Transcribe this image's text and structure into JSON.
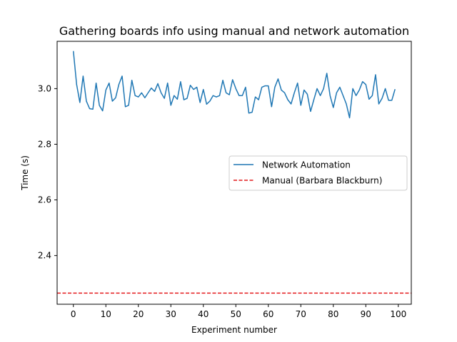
{
  "chart_data": {
    "type": "line",
    "title": "Gathering boards info using manual and network automation",
    "xlabel": "Experiment number",
    "ylabel": "Time (s)",
    "xlim": [
      -5,
      104
    ],
    "ylim": [
      2.225,
      3.17
    ],
    "xticks": [
      0,
      10,
      20,
      30,
      40,
      50,
      60,
      70,
      80,
      90,
      100
    ],
    "yticks": [
      2.4,
      2.6,
      2.8,
      3.0
    ],
    "ytick_labels": [
      "2.4",
      "2.6",
      "2.8",
      "3.0"
    ],
    "grid": false,
    "legend_position": "center-right",
    "series": [
      {
        "name": "Network Automation",
        "style": "solid",
        "color": "#1f77b4",
        "x": [
          0,
          1,
          2,
          3,
          4,
          5,
          6,
          7,
          8,
          9,
          10,
          11,
          12,
          13,
          14,
          15,
          16,
          17,
          18,
          19,
          20,
          21,
          22,
          23,
          24,
          25,
          26,
          27,
          28,
          29,
          30,
          31,
          32,
          33,
          34,
          35,
          36,
          37,
          38,
          39,
          40,
          41,
          42,
          43,
          44,
          45,
          46,
          47,
          48,
          49,
          50,
          51,
          52,
          53,
          54,
          55,
          56,
          57,
          58,
          59,
          60,
          61,
          62,
          63,
          64,
          65,
          66,
          67,
          68,
          69,
          70,
          71,
          72,
          73,
          74,
          75,
          76,
          77,
          78,
          79,
          80,
          81,
          82,
          83,
          84,
          85,
          86,
          87,
          88,
          89,
          90,
          91,
          92,
          93,
          94,
          95,
          96,
          97,
          98,
          99
        ],
        "values": [
          3.135,
          3.015,
          2.95,
          3.045,
          2.955,
          2.928,
          2.926,
          3.02,
          2.94,
          2.92,
          2.995,
          3.02,
          2.955,
          2.967,
          3.015,
          3.045,
          2.935,
          2.94,
          3.03,
          2.975,
          2.97,
          2.985,
          2.967,
          2.985,
          3.002,
          2.99,
          3.018,
          2.985,
          2.965,
          3.02,
          2.94,
          2.975,
          2.962,
          3.025,
          2.96,
          2.965,
          3.012,
          2.997,
          3.005,
          2.95,
          2.997,
          2.944,
          2.955,
          2.975,
          2.97,
          2.975,
          3.03,
          2.985,
          2.978,
          3.032,
          3.0,
          2.975,
          2.975,
          3.005,
          2.912,
          2.915,
          2.97,
          2.96,
          3.005,
          3.01,
          3.01,
          2.935,
          3.005,
          3.035,
          2.995,
          2.985,
          2.96,
          2.945,
          2.985,
          3.02,
          2.94,
          2.995,
          2.98,
          2.918,
          2.96,
          3.0,
          2.975,
          3.0,
          3.055,
          2.975,
          2.932,
          2.985,
          3.005,
          2.975,
          2.945,
          2.895,
          3.0,
          2.975,
          2.995,
          3.025,
          3.015,
          2.962,
          2.975,
          3.05,
          2.945,
          2.965,
          3.0,
          2.958,
          2.958,
          2.998
        ]
      },
      {
        "name": "Manual (Barbara Blackburn)",
        "style": "dashed",
        "color": "#e41a1c",
        "values": [
          2.265
        ]
      }
    ]
  }
}
